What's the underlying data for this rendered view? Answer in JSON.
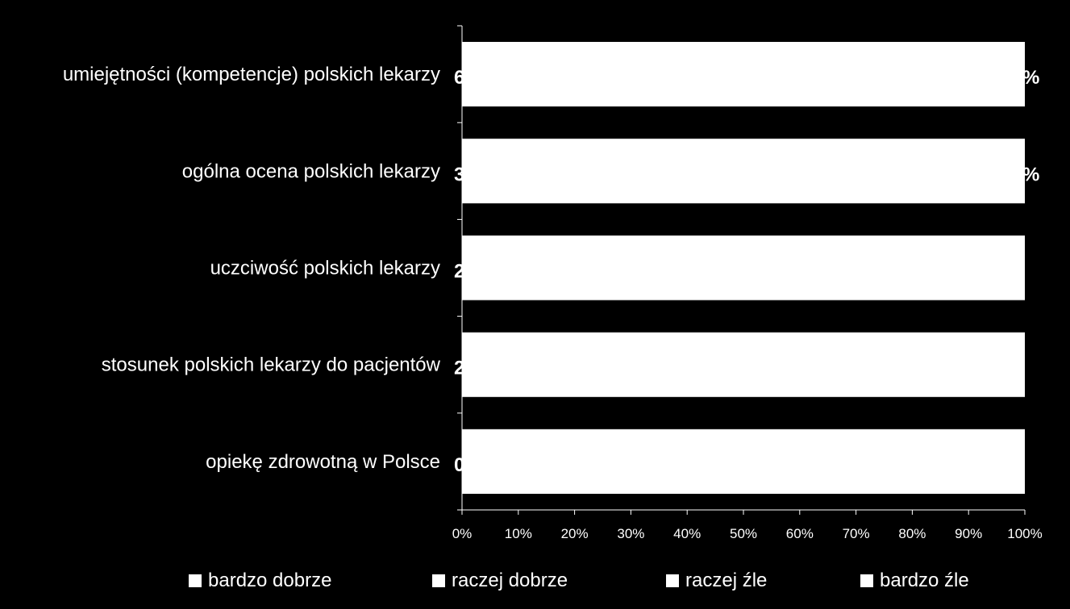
{
  "chart_data": {
    "type": "bar",
    "orientation": "horizontal",
    "stacked": true,
    "percent_stacked": true,
    "categories": [
      "umiejętności (kompetencje) polskich lekarzy",
      "ogólna ocena polskich lekarzy",
      "uczciwość polskich lekarzy",
      "stosunek polskich lekarzy do pacjentów",
      "opiekę zdrowotną w Polsce"
    ],
    "series": [
      {
        "name": "bardzo dobrze",
        "color": "#ffffff",
        "values": [
          100,
          100,
          100,
          100,
          100
        ]
      },
      {
        "name": "raczej dobrze",
        "color": "#ffffff",
        "values": [
          null,
          null,
          null,
          null,
          null
        ]
      },
      {
        "name": "raczej źle",
        "color": "#ffffff",
        "values": [
          null,
          null,
          null,
          null,
          null
        ]
      },
      {
        "name": "bardzo źle",
        "color": "#ffffff",
        "values": [
          null,
          null,
          null,
          null,
          null
        ]
      }
    ],
    "visible_data_labels": [
      {
        "left": "6",
        "right": "%"
      },
      {
        "left": "3",
        "right": "%"
      },
      {
        "left": "2",
        "right": ""
      },
      {
        "left": "2",
        "right": ""
      },
      {
        "left": "0",
        "right": ""
      }
    ],
    "x_ticks": [
      "0%",
      "10%",
      "20%",
      "30%",
      "40%",
      "50%",
      "60%",
      "70%",
      "80%",
      "90%",
      "100%"
    ],
    "xlim": [
      0,
      100
    ],
    "title": "",
    "xlabel": "",
    "ylabel": "",
    "grid": false,
    "legend_position": "bottom",
    "background": "#000000",
    "axis_color": "#ffffff",
    "text_color": "#ffffff"
  },
  "legend": [
    {
      "label": "bardzo dobrze"
    },
    {
      "label": "raczej dobrze"
    },
    {
      "label": "raczej źle"
    },
    {
      "label": "bardzo źle"
    }
  ]
}
